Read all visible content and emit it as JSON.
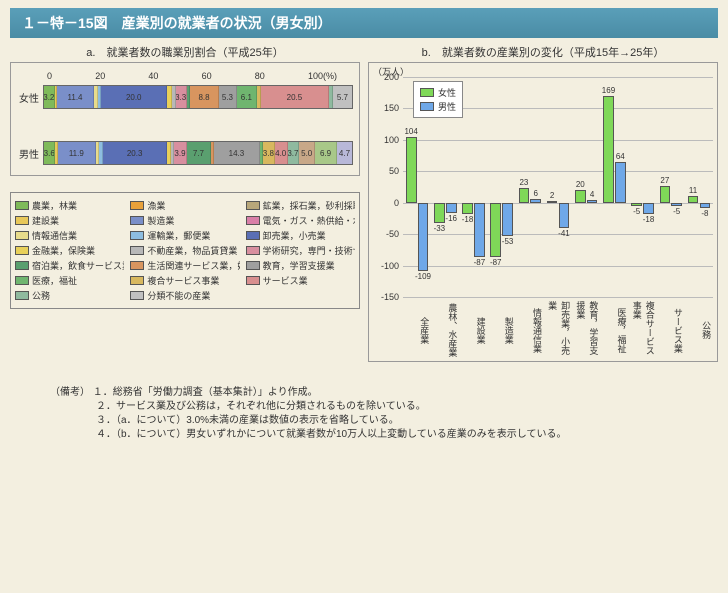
{
  "title": "１－特－15図　産業別の就業者の状況（男女別）",
  "colors": {
    "agriculture": "#7fba5a",
    "fishery": "#e8a13a",
    "mining": "#b8a77a",
    "construction": "#e8c85a",
    "manufacturing": "#7a8fc9",
    "utilities": "#d97fa8",
    "infocomm": "#e8dc8c",
    "transport": "#8dbde0",
    "wholesale": "#5a6fb5",
    "finance": "#e8d05a",
    "realestate": "#b8b8b8",
    "research": "#d88f9f",
    "hotel": "#5a9f6f",
    "lifeservice": "#d8955f",
    "education": "#9f9f9f",
    "medical": "#6fb56f",
    "compound": "#d8b85f",
    "service": "#d88f8f",
    "public": "#8fba9f",
    "unclassified": "#c0c0c0"
  },
  "chartA": {
    "title": "a.　就業者数の職業別割合（平成25年）",
    "ticks": [
      "0",
      "20",
      "40",
      "60",
      "80",
      "100(%)"
    ],
    "female": {
      "label": "女性",
      "segments": [
        {
          "c": "agriculture",
          "v": 3.2,
          "t": "3.2"
        },
        {
          "c": "construction",
          "v": 0.6,
          "t": ""
        },
        {
          "c": "manufacturing",
          "v": 11.4,
          "t": "11.4"
        },
        {
          "c": "infocomm",
          "v": 1.0,
          "t": ""
        },
        {
          "c": "transport",
          "v": 1.0,
          "t": ""
        },
        {
          "c": "wholesale",
          "v": 20.0,
          "t": "20.0"
        },
        {
          "c": "finance",
          "v": 1.5,
          "t": ""
        },
        {
          "c": "realestate",
          "v": 1.0,
          "t": ""
        },
        {
          "c": "research",
          "v": 3.3,
          "t": "3.3"
        },
        {
          "c": "hotel",
          "v": 1.0,
          "t": ""
        },
        {
          "c": "lifeservice",
          "v": 8.8,
          "t": "8.8"
        },
        {
          "c": "education",
          "v": 5.3,
          "t": "5.3"
        },
        {
          "c": "medical",
          "v": 6.1,
          "t": "6.1"
        },
        {
          "c": "compound",
          "v": 1.2,
          "t": ""
        },
        {
          "c": "service",
          "v": 20.5,
          "t": "20.5"
        },
        {
          "c": "public",
          "v": 1.2,
          "t": ""
        },
        {
          "c": "unclassified",
          "v": 5.7,
          "t": "5.7"
        }
      ]
    },
    "male": {
      "label": "男性",
      "segments": [
        {
          "c": "agriculture",
          "v": 3.6,
          "t": "3.6"
        },
        {
          "c": "construction",
          "v": 0.8,
          "t": ""
        },
        {
          "c": "manufacturing",
          "v": 11.9,
          "t": "11.9"
        },
        {
          "c": "infocomm",
          "v": 1.0,
          "t": ""
        },
        {
          "c": "transport",
          "v": 1.3,
          "t": ""
        },
        {
          "c": "wholesale",
          "v": 20.3,
          "t": "20.3"
        },
        {
          "c": "finance",
          "v": 1.2,
          "t": ""
        },
        {
          "c": "realestate",
          "v": 1.0,
          "t": ""
        },
        {
          "c": "research",
          "v": 3.9,
          "t": "3.9"
        },
        {
          "c": "hotel",
          "v": 7.7,
          "t": "7.7"
        },
        {
          "c": "lifeservice",
          "v": 1.0,
          "t": ""
        },
        {
          "c": "education",
          "v": 14.3,
          "t": "14.3"
        },
        {
          "c": "medical",
          "v": 1.0,
          "t": ""
        },
        {
          "c": "compound",
          "v": 3.8,
          "t": "3.8"
        },
        {
          "c": "service",
          "v": 4.0,
          "t": "4.0"
        },
        {
          "c": "public",
          "v": 3.7,
          "t": "3.7"
        },
        {
          "c": "p2",
          "v": 5.0,
          "t": "5.0",
          "cc": "#c8a888"
        },
        {
          "c": "p3",
          "v": 6.9,
          "t": "6.9",
          "cc": "#a8c888"
        },
        {
          "c": "p4",
          "v": 4.7,
          "t": "4.7",
          "cc": "#b8b8d8"
        }
      ]
    }
  },
  "legend": [
    {
      "c": "agriculture",
      "l": "農業，林業"
    },
    {
      "c": "fishery",
      "l": "漁業"
    },
    {
      "c": "mining",
      "l": "鉱業，採石業，砂利採取業"
    },
    {
      "c": "construction",
      "l": "建設業"
    },
    {
      "c": "manufacturing",
      "l": "製造業"
    },
    {
      "c": "utilities",
      "l": "電気・ガス・熱供給・水道業"
    },
    {
      "c": "infocomm",
      "l": "情報通信業"
    },
    {
      "c": "transport",
      "l": "運輸業，郵便業"
    },
    {
      "c": "wholesale",
      "l": "卸売業，小売業"
    },
    {
      "c": "finance",
      "l": "金融業，保険業"
    },
    {
      "c": "realestate",
      "l": "不動産業，物品賃貸業"
    },
    {
      "c": "research",
      "l": "学術研究，専門・技術サービス業"
    },
    {
      "c": "hotel",
      "l": "宿泊業，飲食サービス業"
    },
    {
      "c": "lifeservice",
      "l": "生活関連サービス業，娯楽業"
    },
    {
      "c": "education",
      "l": "教育，学習支援業"
    },
    {
      "c": "medical",
      "l": "医療，福祉"
    },
    {
      "c": "compound",
      "l": "複合サービス事業"
    },
    {
      "c": "service",
      "l": "サービス業"
    },
    {
      "c": "public",
      "l": "公務"
    },
    {
      "c": "unclassified",
      "l": "分類不能の産業"
    }
  ],
  "chartB": {
    "title": "b.　就業者数の産業別の変化（平成15年→25年）",
    "yLabel": "（万人）",
    "colorF": "#7fd858",
    "colorM": "#6fa8e8",
    "ymin": -150,
    "ymax": 200,
    "ystep": 50,
    "legendF": "女性",
    "legendM": "男性",
    "groups": [
      {
        "x": "全産業",
        "f": 104,
        "m": -109
      },
      {
        "x": "農林、水産業",
        "f": -33,
        "m": -16
      },
      {
        "x": "建設業",
        "f": -18,
        "m": -87
      },
      {
        "x": "製造業",
        "f": -87,
        "m": -53
      },
      {
        "x": "情報通信業",
        "f": 23,
        "m": 6
      },
      {
        "x": "卸売業，小売業",
        "f": 2,
        "m": -41
      },
      {
        "x": "教育，学習支援業",
        "f": 20,
        "m": 4
      },
      {
        "x": "医療，福祉",
        "f": 169,
        "m": 64
      },
      {
        "x": "複合サービス事業",
        "f": -5,
        "m": -18
      },
      {
        "x": "サービス業",
        "f": 27,
        "m": -5
      },
      {
        "x": "公務",
        "f": 11,
        "m": -8
      }
    ]
  },
  "notes": {
    "head": "（備考）",
    "lines": [
      "１．総務省「労働力調査（基本集計）」より作成。",
      "２．サービス業及び公務は，それぞれ他に分類されるものを除いている。",
      "３．（a．について）3.0%未満の産業は数値の表示を省略している。",
      "４．（b．について）男女いずれかについて就業者数が10万人以上変動している産業のみを表示している。"
    ]
  }
}
